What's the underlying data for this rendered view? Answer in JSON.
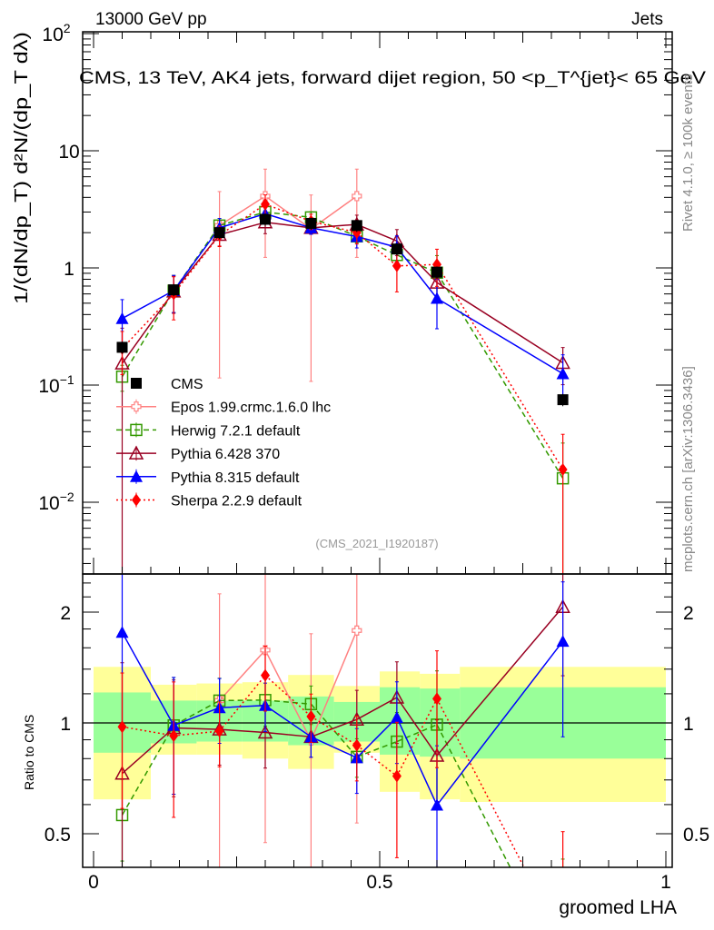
{
  "header": {
    "left": "13000 GeV pp",
    "right": "Jets"
  },
  "side": {
    "rivet": "Rivet 4.1.0, ≥ 100k events",
    "mcplots": "mcplots.cern.ch [arXiv:1306.3436]"
  },
  "watermark": "(CMS_2021_I1920187)",
  "chart_data": {
    "type": "line",
    "title": "CMS, 13 TeV, AK4 jets, forward dijet region, 50 <p_T^{jet}< 65 GeV",
    "xlabel": "groomed LHA",
    "ylabel": "1/(dN/dp_T) d²N/(dp_T dλ)",
    "ratio_ylabel": "Ratio to CMS",
    "xlim": [
      0,
      1
    ],
    "ylim": [
      0.0024,
      100
    ],
    "ratio_ylim": [
      0.4,
      2.5
    ],
    "y_scale": "log",
    "ratio_scale": "log",
    "x_ticks": [
      "0",
      "0.5",
      "1"
    ],
    "y_ticks": [
      {
        "v": 100,
        "base": "10",
        "exp": "2"
      },
      {
        "v": 10,
        "base": "10",
        "exp": ""
      },
      {
        "v": 1,
        "base": "1",
        "exp": ""
      },
      {
        "v": 0.1,
        "base": "10",
        "exp": "−1"
      },
      {
        "v": 0.01,
        "base": "10",
        "exp": "−2"
      }
    ],
    "ratio_ticks": [
      {
        "v": 2,
        "label": "2"
      },
      {
        "v": 1,
        "label": "1"
      },
      {
        "v": 0.5,
        "label": "0.5"
      }
    ],
    "bin_edges": [
      0,
      0.1,
      0.18,
      0.26,
      0.34,
      0.42,
      0.5,
      0.57,
      0.64,
      1.0
    ],
    "x": [
      0.05,
      0.14,
      0.22,
      0.3,
      0.38,
      0.46,
      0.53,
      0.6,
      0.82
    ],
    "data": {
      "name": "CMS",
      "values": [
        0.21,
        0.65,
        2.0,
        2.6,
        2.4,
        2.3,
        1.45,
        0.92,
        0.075
      ],
      "band_1sigma": [
        [
          0.83,
          1.21
        ],
        [
          0.88,
          1.15
        ],
        [
          0.89,
          1.15
        ],
        [
          0.89,
          1.15
        ],
        [
          0.87,
          1.18
        ],
        [
          0.89,
          1.14
        ],
        [
          0.82,
          1.25
        ],
        [
          0.81,
          1.24
        ],
        [
          0.8,
          1.25
        ]
      ],
      "band_2sigma": [
        [
          0.62,
          1.42
        ],
        [
          0.82,
          1.27
        ],
        [
          0.82,
          1.28
        ],
        [
          0.8,
          1.29
        ],
        [
          0.75,
          1.35
        ],
        [
          0.83,
          1.26
        ],
        [
          0.65,
          1.38
        ],
        [
          0.62,
          1.36
        ],
        [
          0.61,
          1.42
        ]
      ]
    },
    "series": [
      {
        "name": "Epos 1.99.crmc.1.6.0 lhc",
        "color": "#ff8080",
        "dash": "",
        "marker": "cross",
        "start": 2,
        "values": [
          null,
          null,
          2.3,
          4.1,
          2.15,
          4.1,
          null,
          null,
          null
        ],
        "err": [
          0,
          0,
          0.95,
          0.7,
          0.95,
          0.7,
          0,
          0,
          0
        ]
      },
      {
        "name": "Herwig 7.2.1 default",
        "color": "#339900",
        "dash": "6,4",
        "marker": "open-square",
        "start": 0,
        "values": [
          0.118,
          0.64,
          2.3,
          3.0,
          2.7,
          1.86,
          1.29,
          0.91,
          0.016
        ],
        "err": [
          0.25,
          0.35,
          0.15,
          0.15,
          0.12,
          0.12,
          0.2,
          0.4,
          1.0
        ]
      },
      {
        "name": "Pythia 6.428 370",
        "color": "#990022",
        "dash": "",
        "marker": "open-triangle",
        "start": 0,
        "values": [
          0.153,
          0.63,
          1.92,
          2.45,
          2.2,
          2.35,
          1.7,
          0.75,
          0.155
        ],
        "err": [
          1.0,
          0.35,
          0.2,
          0.2,
          0.12,
          0.2,
          0.25,
          0.25,
          0.35
        ]
      },
      {
        "name": "Pythia 8.315 default",
        "color": "#0000ff",
        "dash": "",
        "marker": "filled-triangle",
        "start": 0,
        "values": [
          0.37,
          0.64,
          2.2,
          2.9,
          2.2,
          1.85,
          1.5,
          0.55,
          0.125
        ],
        "err": [
          0.45,
          0.35,
          0.2,
          0.15,
          0.12,
          0.2,
          0.25,
          0.45,
          0.45
        ]
      },
      {
        "name": "Sherpa 2.2.9 default",
        "color": "#ff0000",
        "dash": "2,3",
        "marker": "filled-diamond",
        "start": 0,
        "values": [
          0.205,
          0.6,
          1.9,
          3.5,
          2.5,
          2.0,
          1.04,
          1.07,
          0.019
        ],
        "err": [
          0.4,
          0.4,
          0.2,
          0.2,
          0.15,
          0.2,
          0.4,
          0.35,
          1.0
        ]
      }
    ],
    "legend": "top-left (lower part of main panel)"
  }
}
